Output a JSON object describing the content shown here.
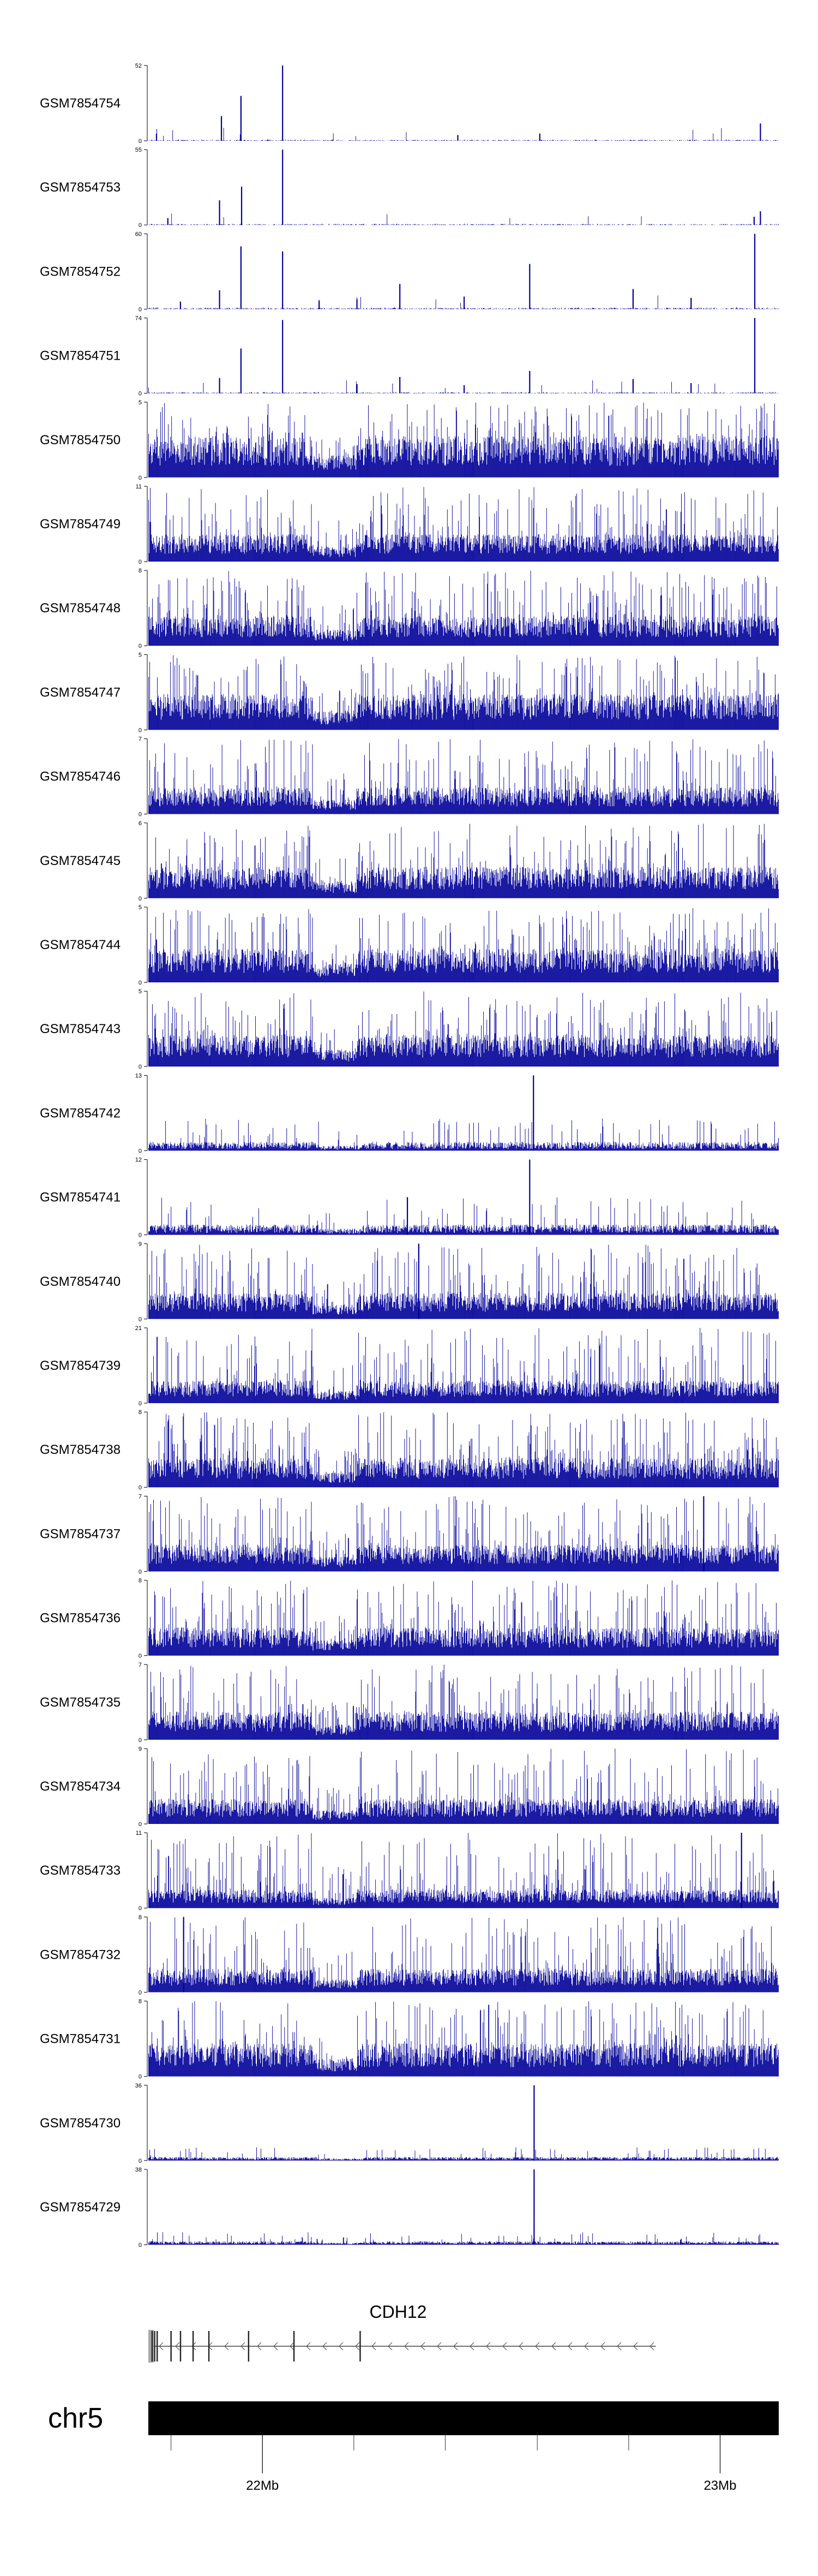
{
  "chart_data": {
    "type": "genome-browser-coverage-tracks",
    "bar_color": "#000099",
    "tracks": [
      {
        "name": "GSM7854754",
        "ymax": 52,
        "ymin": 0,
        "profile": "sparse",
        "baseline": 1.0,
        "peaks": [
          [
            0.115,
            17
          ],
          [
            0.146,
            31
          ],
          [
            0.212,
            52
          ],
          [
            0.012,
            5
          ],
          [
            0.97,
            12
          ],
          [
            0.49,
            4
          ],
          [
            0.62,
            5
          ]
        ]
      },
      {
        "name": "GSM7854753",
        "ymax": 55,
        "ymin": 0,
        "profile": "sparse",
        "baseline": 1.0,
        "peaks": [
          [
            0.112,
            18
          ],
          [
            0.147,
            28
          ],
          [
            0.212,
            55
          ],
          [
            0.03,
            5
          ],
          [
            0.97,
            10
          ],
          [
            0.96,
            6
          ]
        ]
      },
      {
        "name": "GSM7854752",
        "ymax": 60,
        "ymin": 0,
        "profile": "sparse",
        "baseline": 1.5,
        "peaks": [
          [
            0.112,
            15
          ],
          [
            0.146,
            50
          ],
          [
            0.212,
            46
          ],
          [
            0.398,
            20
          ],
          [
            0.604,
            36
          ],
          [
            0.768,
            16
          ],
          [
            0.961,
            60
          ],
          [
            0.5,
            10
          ],
          [
            0.86,
            9
          ],
          [
            0.33,
            8
          ],
          [
            0.05,
            6
          ],
          [
            0.27,
            7
          ]
        ]
      },
      {
        "name": "GSM7854751",
        "ymax": 74,
        "ymin": 0,
        "profile": "sparse",
        "baseline": 1.5,
        "peaks": [
          [
            0.112,
            15
          ],
          [
            0.146,
            44
          ],
          [
            0.212,
            72
          ],
          [
            0.398,
            16
          ],
          [
            0.604,
            22
          ],
          [
            0.768,
            14
          ],
          [
            0.961,
            74
          ],
          [
            0.5,
            8
          ],
          [
            0.86,
            10
          ],
          [
            0.33,
            9
          ]
        ]
      },
      {
        "name": "GSM7854750",
        "ymax": 5,
        "ymin": 0,
        "profile": "dense",
        "baseline": 2.2,
        "peaks": []
      },
      {
        "name": "GSM7854749",
        "ymax": 11,
        "ymin": 0,
        "profile": "dense",
        "baseline": 3.2,
        "peaks": []
      },
      {
        "name": "GSM7854748",
        "ymax": 8,
        "ymin": 0,
        "profile": "dense",
        "baseline": 2.5,
        "peaks": []
      },
      {
        "name": "GSM7854747",
        "ymax": 5,
        "ymin": 0,
        "profile": "dense",
        "baseline": 1.9,
        "peaks": []
      },
      {
        "name": "GSM7854746",
        "ymax": 7,
        "ymin": 0,
        "profile": "dense",
        "baseline": 2.0,
        "peaks": []
      },
      {
        "name": "GSM7854745",
        "ymax": 6,
        "ymin": 0,
        "profile": "dense",
        "baseline": 2.0,
        "peaks": []
      },
      {
        "name": "GSM7854744",
        "ymax": 5,
        "ymin": 0,
        "profile": "dense",
        "baseline": 1.8,
        "peaks": []
      },
      {
        "name": "GSM7854743",
        "ymax": 5,
        "ymin": 0,
        "profile": "dense",
        "baseline": 1.7,
        "peaks": []
      },
      {
        "name": "GSM7854742",
        "ymax": 13,
        "ymin": 0,
        "profile": "low",
        "baseline": 1.4,
        "peaks": [
          [
            0.61,
            13
          ]
        ]
      },
      {
        "name": "GSM7854741",
        "ymax": 12,
        "ymin": 0,
        "profile": "low",
        "baseline": 1.5,
        "peaks": [
          [
            0.604,
            12
          ],
          [
            0.41,
            6
          ]
        ]
      },
      {
        "name": "GSM7854740",
        "ymax": 9,
        "ymin": 0,
        "profile": "dense",
        "baseline": 2.5,
        "peaks": [
          [
            0.428,
            9
          ]
        ]
      },
      {
        "name": "GSM7854739",
        "ymax": 21,
        "ymin": 0,
        "profile": "dense",
        "baseline": 5.0,
        "peaks": []
      },
      {
        "name": "GSM7854738",
        "ymax": 8,
        "ymin": 0,
        "profile": "dense",
        "baseline": 2.5,
        "peaks": []
      },
      {
        "name": "GSM7854737",
        "ymax": 7,
        "ymin": 0,
        "profile": "dense",
        "baseline": 2.0,
        "peaks": [
          [
            0.88,
            7
          ]
        ]
      },
      {
        "name": "GSM7854736",
        "ymax": 8,
        "ymin": 0,
        "profile": "dense",
        "baseline": 2.4,
        "peaks": []
      },
      {
        "name": "GSM7854735",
        "ymax": 7,
        "ymin": 0,
        "profile": "dense",
        "baseline": 2.1,
        "peaks": []
      },
      {
        "name": "GSM7854734",
        "ymax": 9,
        "ymin": 0,
        "profile": "dense",
        "baseline": 2.4,
        "peaks": []
      },
      {
        "name": "GSM7854733",
        "ymax": 11,
        "ymin": 0,
        "profile": "dense",
        "baseline": 2.2,
        "peaks": [
          [
            0.94,
            11
          ]
        ]
      },
      {
        "name": "GSM7854732",
        "ymax": 8,
        "ymin": 0,
        "profile": "dense",
        "baseline": 2.0,
        "peaks": [
          [
            0.055,
            8
          ]
        ]
      },
      {
        "name": "GSM7854731",
        "ymax": 8,
        "ymin": 0,
        "profile": "dense",
        "baseline": 2.8,
        "peaks": []
      },
      {
        "name": "GSM7854730",
        "ymax": 36,
        "ymin": 0,
        "profile": "low",
        "baseline": 1.6,
        "peaks": [
          [
            0.611,
            36
          ]
        ]
      },
      {
        "name": "GSM7854729",
        "ymax": 38,
        "ymin": 0,
        "profile": "low",
        "baseline": 1.6,
        "peaks": [
          [
            0.611,
            38
          ]
        ]
      }
    ],
    "gene": {
      "name": "CDH12",
      "strand": "-",
      "start_frac": 0.0,
      "end_frac": 0.805,
      "exons_frac": [
        0.005,
        0.009,
        0.013,
        0.035,
        0.05,
        0.07,
        0.095,
        0.158,
        0.23,
        0.335
      ]
    },
    "chromosome": "chr5",
    "axis_ticks": [
      {
        "label": "22Mb",
        "frac": 0.181
      },
      {
        "label": "23Mb",
        "frac": 0.907
      }
    ],
    "minor_ticks_frac": [
      0.036,
      0.326,
      0.471,
      0.617,
      0.762
    ]
  }
}
